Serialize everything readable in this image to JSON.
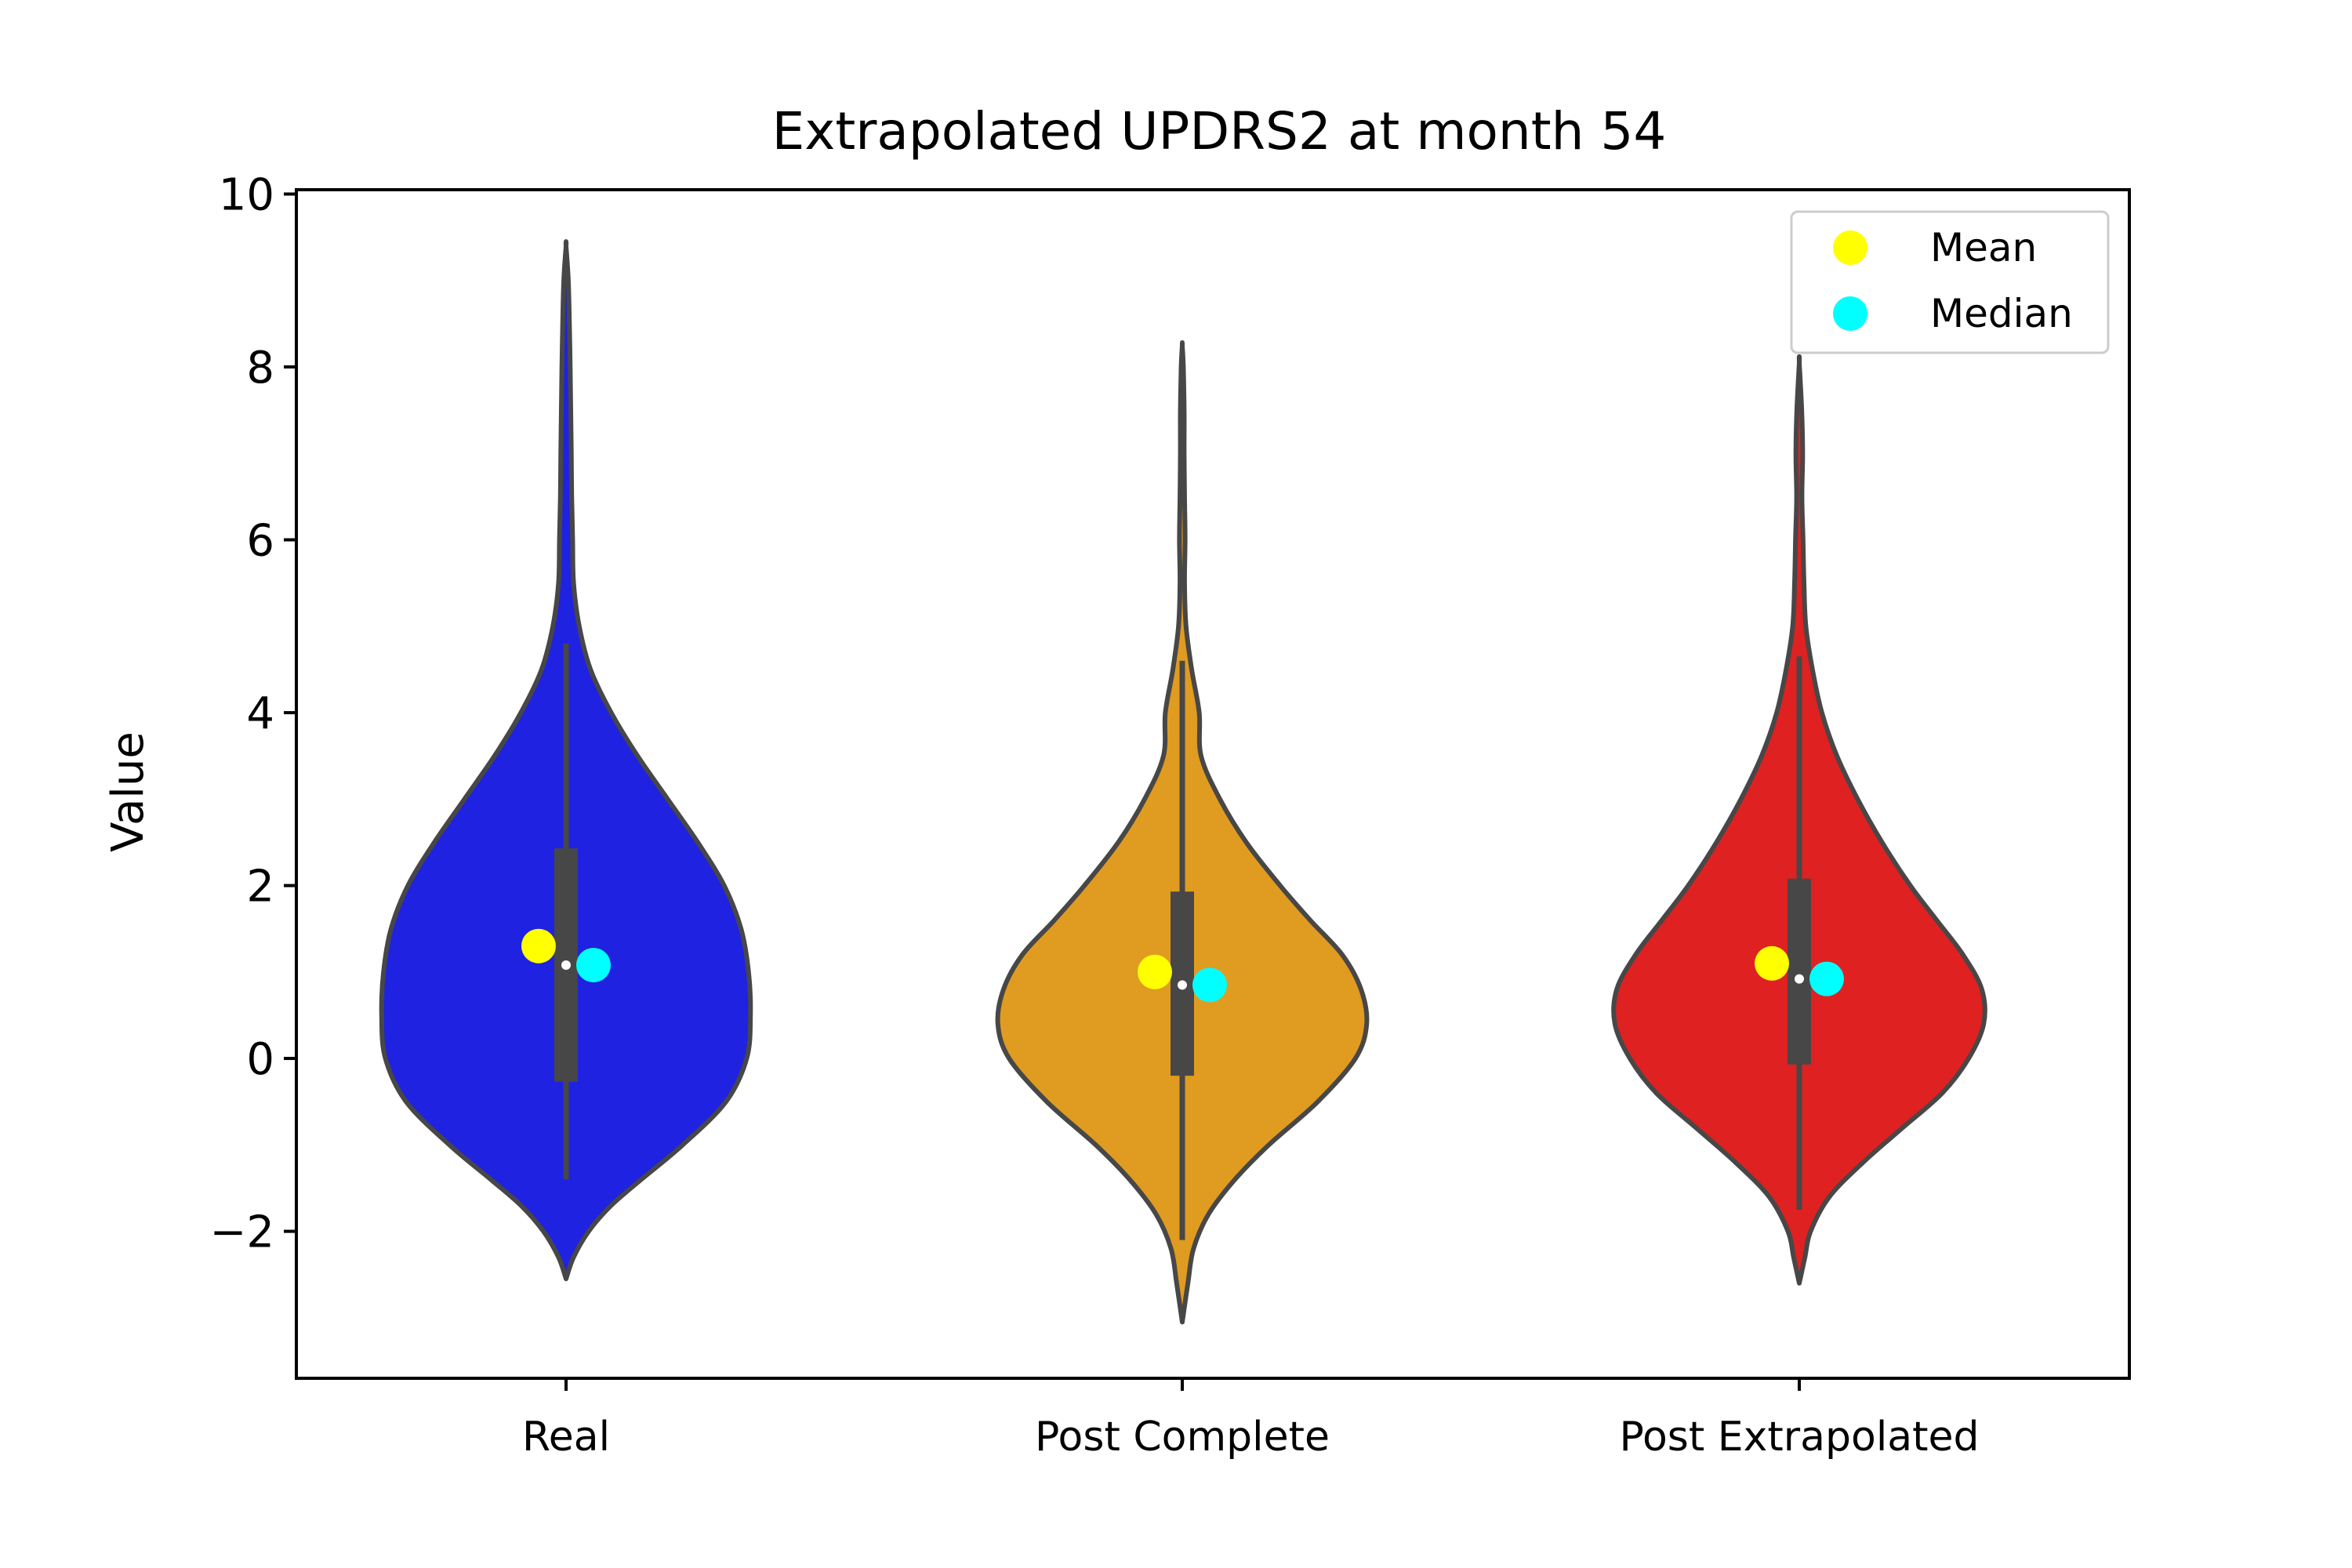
{
  "chart_data": {
    "type": "violin",
    "title": "Extrapolated UPDRS2 at month 54",
    "xlabel": "",
    "ylabel": "Value",
    "ylim": [
      -3.7,
      10.05
    ],
    "yticks": [
      -2,
      0,
      2,
      4,
      6,
      8,
      10
    ],
    "ytick_labels": [
      "−2",
      "0",
      "2",
      "4",
      "6",
      "8",
      "10"
    ],
    "grid": false,
    "legend": {
      "placement": "top-right",
      "entries": [
        {
          "label": "Mean",
          "color": "#ffff00"
        },
        {
          "label": "Median",
          "color": "#00ffff"
        }
      ]
    },
    "categories": [
      "Real",
      "Post Complete",
      "Post Extrapolated"
    ],
    "series": [
      {
        "category": "Real",
        "color": "#1f22e0",
        "mean": 1.3,
        "median": 1.08,
        "q1": -0.27,
        "q3": 2.43,
        "whisker_low": -1.4,
        "whisker_high": 4.8,
        "kde_min": -2.55,
        "kde_max": 9.4,
        "profile": [
          [
            -2.55,
            0.0
          ],
          [
            -2.3,
            0.04
          ],
          [
            -2.0,
            0.12
          ],
          [
            -1.7,
            0.24
          ],
          [
            -1.4,
            0.4
          ],
          [
            -1.0,
            0.62
          ],
          [
            -0.5,
            0.85
          ],
          [
            0.0,
            0.96
          ],
          [
            0.5,
            0.98
          ],
          [
            1.0,
            0.97
          ],
          [
            1.5,
            0.93
          ],
          [
            2.0,
            0.84
          ],
          [
            2.5,
            0.7
          ],
          [
            3.0,
            0.54
          ],
          [
            3.5,
            0.38
          ],
          [
            4.0,
            0.24
          ],
          [
            4.5,
            0.13
          ],
          [
            5.0,
            0.07
          ],
          [
            5.5,
            0.04
          ],
          [
            6.0,
            0.035
          ],
          [
            6.5,
            0.03
          ],
          [
            7.0,
            0.028
          ],
          [
            7.5,
            0.025
          ],
          [
            8.0,
            0.022
          ],
          [
            8.5,
            0.018
          ],
          [
            9.0,
            0.012
          ],
          [
            9.4,
            0.0
          ]
        ]
      },
      {
        "category": "Post Complete",
        "color": "#e09b21",
        "mean": 1.0,
        "median": 0.85,
        "q1": -0.2,
        "q3": 1.93,
        "whisker_low": -2.1,
        "whisker_high": 4.6,
        "kde_min": -3.05,
        "kde_max": 8.25,
        "profile": [
          [
            -3.05,
            0.0
          ],
          [
            -2.6,
            0.03
          ],
          [
            -2.2,
            0.06
          ],
          [
            -1.8,
            0.14
          ],
          [
            -1.4,
            0.28
          ],
          [
            -1.0,
            0.46
          ],
          [
            -0.5,
            0.72
          ],
          [
            0.0,
            0.92
          ],
          [
            0.4,
            0.98
          ],
          [
            0.8,
            0.95
          ],
          [
            1.2,
            0.85
          ],
          [
            1.6,
            0.68
          ],
          [
            2.0,
            0.52
          ],
          [
            2.5,
            0.34
          ],
          [
            3.0,
            0.2
          ],
          [
            3.5,
            0.1
          ],
          [
            4.0,
            0.09
          ],
          [
            4.5,
            0.05
          ],
          [
            5.0,
            0.02
          ],
          [
            5.5,
            0.012
          ],
          [
            6.0,
            0.015
          ],
          [
            6.5,
            0.012
          ],
          [
            7.0,
            0.01
          ],
          [
            7.5,
            0.01
          ],
          [
            8.0,
            0.006
          ],
          [
            8.25,
            0.0
          ]
        ]
      },
      {
        "category": "Post Extrapolated",
        "color": "#df2121",
        "mean": 1.1,
        "median": 0.92,
        "q1": -0.07,
        "q3": 2.08,
        "whisker_low": -1.75,
        "whisker_high": 4.65,
        "kde_min": -2.6,
        "kde_max": 8.05,
        "profile": [
          [
            -2.6,
            0.0
          ],
          [
            -2.3,
            0.03
          ],
          [
            -2.0,
            0.06
          ],
          [
            -1.6,
            0.16
          ],
          [
            -1.2,
            0.34
          ],
          [
            -0.8,
            0.55
          ],
          [
            -0.4,
            0.76
          ],
          [
            0.0,
            0.9
          ],
          [
            0.4,
            0.98
          ],
          [
            0.8,
            0.97
          ],
          [
            1.2,
            0.87
          ],
          [
            1.6,
            0.73
          ],
          [
            2.0,
            0.59
          ],
          [
            2.5,
            0.44
          ],
          [
            3.0,
            0.31
          ],
          [
            3.5,
            0.2
          ],
          [
            4.0,
            0.12
          ],
          [
            4.5,
            0.07
          ],
          [
            5.0,
            0.035
          ],
          [
            5.5,
            0.025
          ],
          [
            6.0,
            0.02
          ],
          [
            6.5,
            0.014
          ],
          [
            7.0,
            0.018
          ],
          [
            7.5,
            0.013
          ],
          [
            8.05,
            0.0
          ]
        ]
      }
    ]
  }
}
